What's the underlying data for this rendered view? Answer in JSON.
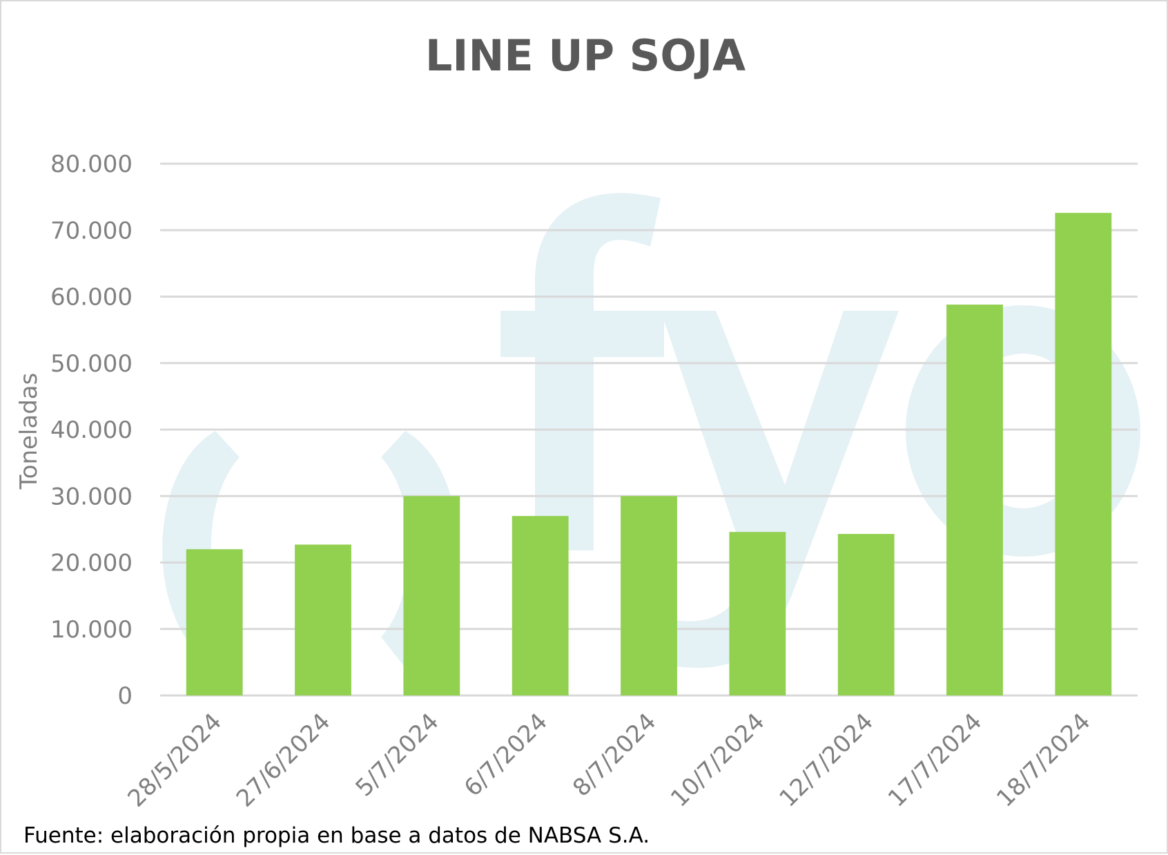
{
  "chart_data": {
    "type": "bar",
    "title": "LINE UP SOJA",
    "xlabel": "",
    "ylabel": "Toneladas",
    "categories": [
      "28/5/2024",
      "27/6/2024",
      "5/7/2024",
      "6/7/2024",
      "8/7/2024",
      "10/7/2024",
      "12/7/2024",
      "17/7/2024",
      "18/7/2024"
    ],
    "values": [
      22000,
      22700,
      30000,
      27000,
      30000,
      24600,
      24300,
      58800,
      72600
    ],
    "ylim": [
      0,
      80000
    ],
    "yticks": [
      0,
      10000,
      20000,
      30000,
      40000,
      50000,
      60000,
      70000,
      80000
    ],
    "ytick_labels": [
      "0",
      "10.000",
      "20.000",
      "30.000",
      "40.000",
      "50.000",
      "60.000",
      "70.000",
      "80.000"
    ],
    "grid": true,
    "legend": "none",
    "bar_color": "#92d050",
    "grid_color": "#d9d9d9",
    "watermark_color": "#e4f1f5"
  },
  "footer": {
    "source": "Fuente: elaboración propia en base a datos de NABSA S.A."
  }
}
